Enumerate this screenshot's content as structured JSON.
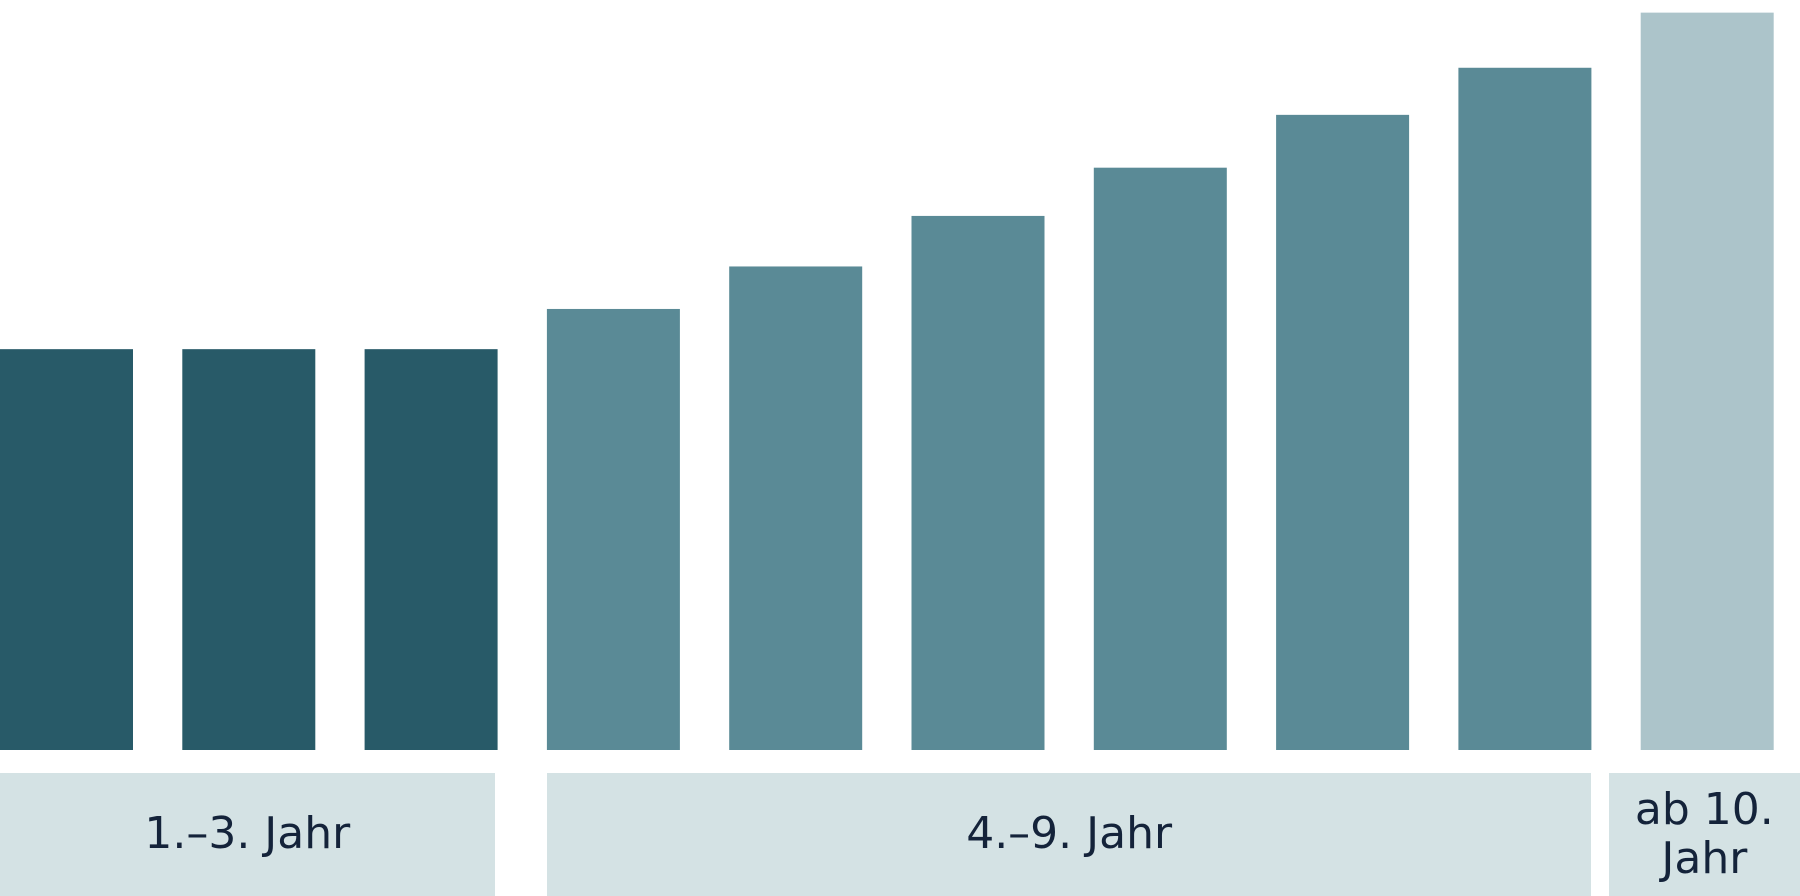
{
  "chart_data": {
    "type": "bar",
    "ylim": [
      0,
      653
    ],
    "groups": [
      {
        "label": "1.–3. Jahr",
        "color": "#285a68",
        "values": [
          349,
          349,
          349
        ]
      },
      {
        "label": "4.–9. Jahr",
        "color": "#5a8a96",
        "values": [
          384,
          421,
          465,
          507,
          553,
          594
        ]
      },
      {
        "label": "ab 10. Jahr",
        "color": "#acc4ca",
        "values": [
          642
        ]
      }
    ],
    "label_background": "#d4e2e4"
  }
}
